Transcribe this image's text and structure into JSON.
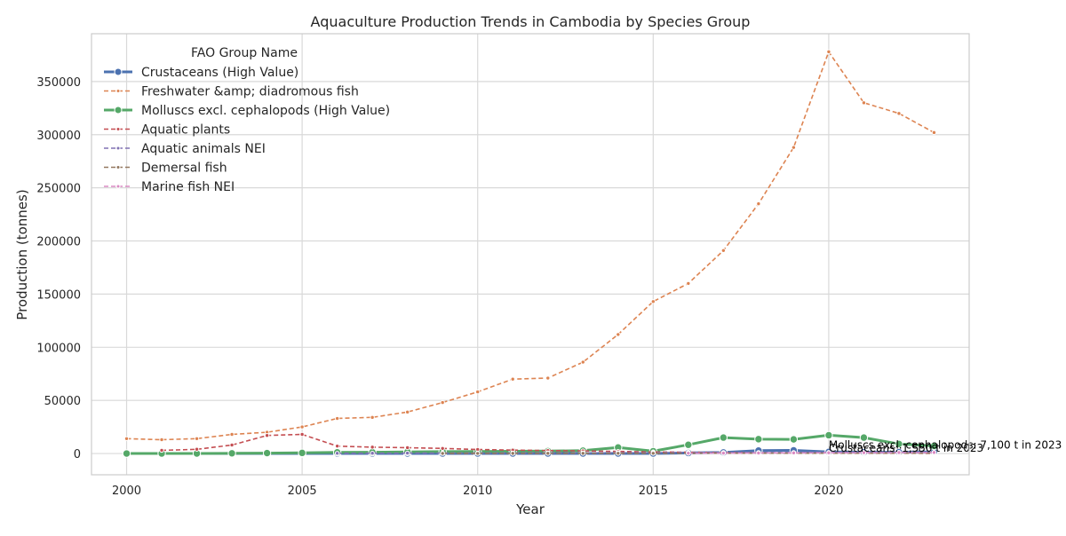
{
  "chart_data": {
    "type": "line",
    "title": "Aquaculture Production Trends in Cambodia by Species Group",
    "xlabel": "Year",
    "ylabel": "Production (tonnes)",
    "xlim": [
      1999,
      2024
    ],
    "ylim": [
      -20000,
      395000
    ],
    "x_ticks": [
      2000,
      2005,
      2010,
      2015,
      2020
    ],
    "y_ticks": [
      0,
      50000,
      100000,
      150000,
      200000,
      250000,
      300000,
      350000
    ],
    "grid": true,
    "legend": {
      "title": "FAO Group Name",
      "placement": "top-left"
    },
    "x": [
      2000,
      2001,
      2002,
      2003,
      2004,
      2005,
      2006,
      2007,
      2008,
      2009,
      2010,
      2011,
      2012,
      2013,
      2014,
      2015,
      2016,
      2017,
      2018,
      2019,
      2020,
      2021,
      2022,
      2023
    ],
    "series": [
      {
        "name": "Crustaceans (High Value)",
        "color": "#4c72b0",
        "style": "solid-thick",
        "values": [
          0,
          0,
          0,
          0,
          0,
          0,
          0,
          0,
          0,
          0,
          0,
          0,
          0,
          0,
          0,
          0,
          500,
          1000,
          2800,
          3000,
          1500,
          1200,
          1300,
          1550
        ]
      },
      {
        "name": "Freshwater &amp; diadromous fish",
        "color": "#dd8452",
        "style": "dashed",
        "values": [
          14000,
          13000,
          14000,
          18000,
          20000,
          25000,
          33000,
          34000,
          39000,
          48000,
          58000,
          70000,
          71000,
          86000,
          112000,
          143000,
          160000,
          191000,
          235000,
          288000,
          378000,
          330000,
          320000,
          302000
        ]
      },
      {
        "name": "Molluscs excl. cephalopods (High Value)",
        "color": "#55a868",
        "style": "solid-thick",
        "values": [
          0,
          0,
          0,
          200,
          400,
          600,
          1100,
          1200,
          1500,
          1800,
          1900,
          2100,
          2300,
          2700,
          5700,
          2200,
          8200,
          15000,
          13500,
          13300,
          17200,
          15000,
          9000,
          7100
        ]
      },
      {
        "name": "Aquatic plants",
        "color": "#c44e52",
        "style": "dashed",
        "values": [
          null,
          3000,
          4000,
          8000,
          17000,
          18000,
          7000,
          6000,
          5500,
          4800,
          3800,
          3200,
          2800,
          2500,
          2000,
          1500,
          1200,
          900,
          700,
          500,
          400,
          300,
          250,
          200
        ]
      },
      {
        "name": "Aquatic animals NEI",
        "color": "#8172b3",
        "style": "dashed",
        "values": [
          null,
          null,
          null,
          null,
          null,
          null,
          200,
          300,
          400,
          450,
          500,
          550,
          600,
          650,
          700,
          750,
          800,
          850,
          900,
          950,
          1000,
          1050,
          1100,
          1150
        ]
      },
      {
        "name": "Demersal fish",
        "color": "#937860",
        "style": "dashed",
        "values": [
          null,
          null,
          null,
          null,
          null,
          null,
          null,
          null,
          null,
          100,
          120,
          140,
          160,
          180,
          200,
          220,
          240,
          260,
          280,
          300,
          320,
          340,
          360,
          380
        ]
      },
      {
        "name": "Marine fish NEI",
        "color": "#da8bc3",
        "style": "dashed",
        "values": [
          null,
          null,
          null,
          null,
          null,
          null,
          null,
          null,
          null,
          null,
          null,
          null,
          null,
          null,
          null,
          null,
          300,
          400,
          500,
          600,
          700,
          800,
          900,
          1000
        ]
      }
    ],
    "annotations": [
      {
        "text": "Molluscs excl. cephalopods: 7,100 t in 2023",
        "x": 2020,
        "y": 7100
      },
      {
        "text": "Crustaceans: 1,550 t in 2023",
        "x": 2020,
        "y": 1550
      }
    ]
  }
}
